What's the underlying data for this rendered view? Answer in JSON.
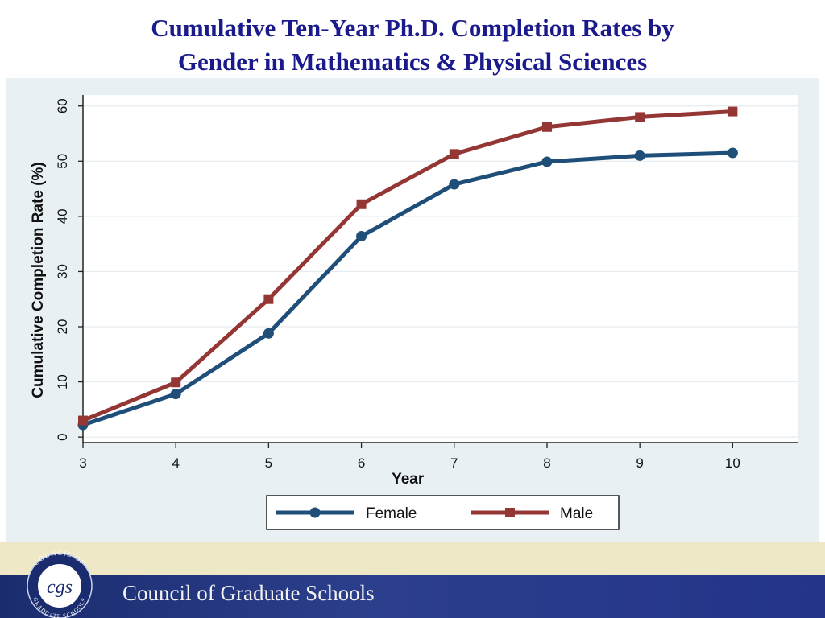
{
  "slide": {
    "title_line1": "Cumulative Ten-Year Ph.D. Completion Rates by",
    "title_line2": "Gender in Mathematics & Physical Sciences"
  },
  "chart_data": {
    "type": "line",
    "title": "",
    "xlabel": "Year",
    "ylabel": "Cumulative Completion Rate (%)",
    "x": [
      3,
      4,
      5,
      6,
      7,
      8,
      9,
      10
    ],
    "xlim": [
      3,
      10.7
    ],
    "ylim": [
      -1,
      62
    ],
    "xticks": [
      3,
      4,
      5,
      6,
      7,
      8,
      9,
      10
    ],
    "yticks": [
      0,
      10,
      20,
      30,
      40,
      50,
      60
    ],
    "grid": true,
    "legend_position": "bottom",
    "series": [
      {
        "name": "Female",
        "color": "#1f4e79",
        "marker": "circle",
        "values": [
          2.2,
          7.8,
          18.8,
          36.4,
          45.8,
          49.9,
          51.0,
          51.5
        ]
      },
      {
        "name": "Male",
        "color": "#943634",
        "marker": "square",
        "values": [
          3.0,
          9.9,
          25.0,
          42.2,
          51.3,
          56.2,
          58.0,
          59.0
        ]
      }
    ]
  },
  "footer": {
    "org_name": "Council of Graduate Schools",
    "logo_text": "COUNCIL OF GRADUATE SCHOOLS",
    "logo_mark": "cgs",
    "bar_color": "#2c3f8c",
    "strip_color": "#efe8c6"
  }
}
